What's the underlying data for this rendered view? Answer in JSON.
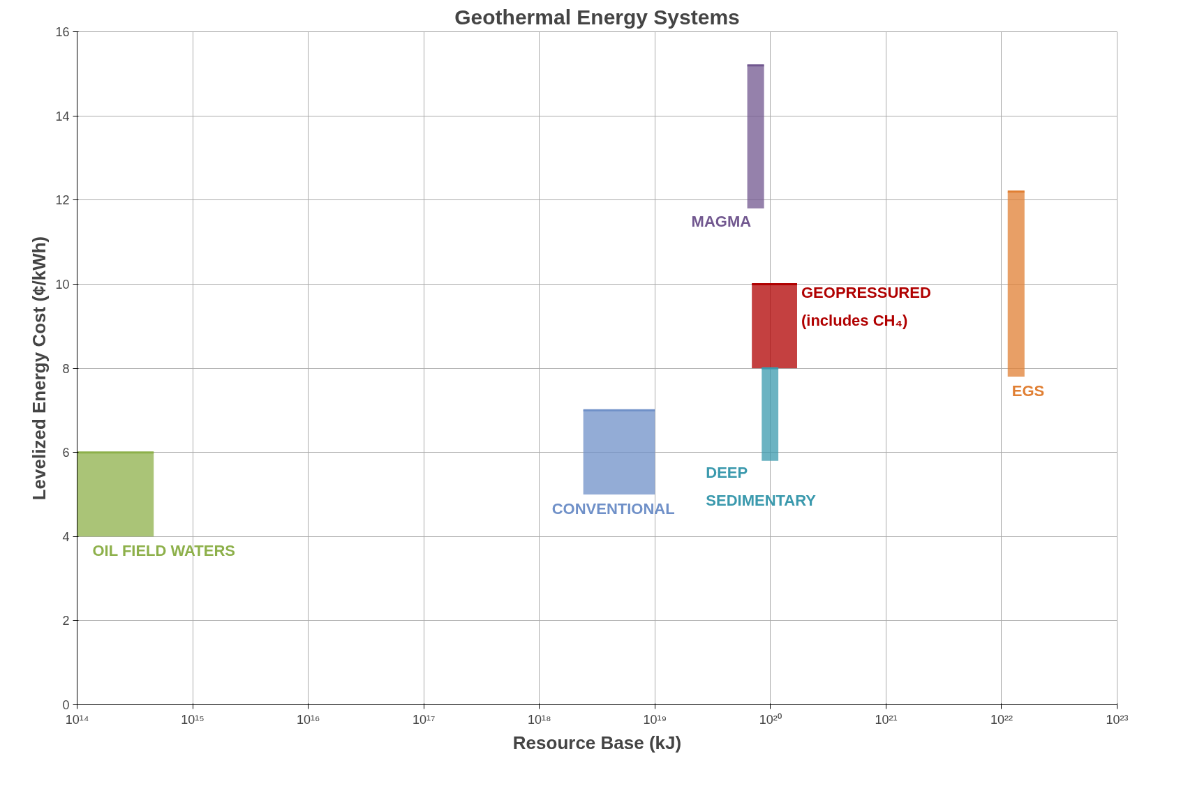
{
  "chart_data": {
    "type": "line",
    "title": "Geothermal Energy Systems",
    "xlabel": "Resource Base (kJ)",
    "ylabel": "Levelized Energy Cost (¢/kWh)",
    "log": "x",
    "grid": true,
    "xlim": [
      100000000000000.0,
      1e+23
    ],
    "xticks": [
      {
        "value": 100000000000000.0,
        "label": "10¹⁴"
      },
      {
        "value": 1000000000000000.0,
        "label": "10¹⁵"
      },
      {
        "value": 1e+16,
        "label": "10¹⁶"
      },
      {
        "value": 1e+17,
        "label": "10¹⁷"
      },
      {
        "value": 1e+18,
        "label": "10¹⁸"
      },
      {
        "value": 1e+19,
        "label": "10¹⁹"
      },
      {
        "value": 1e+20,
        "label": "10²⁰"
      },
      {
        "value": 1e+21,
        "label": "10²¹"
      },
      {
        "value": 1e+22,
        "label": "10²²"
      },
      {
        "value": 1e+23,
        "label": "10²³"
      }
    ],
    "ylim": [
      0,
      16
    ],
    "yticks": [
      0,
      2,
      4,
      6,
      8,
      10,
      12,
      14,
      16
    ],
    "series": [
      {
        "name": "OIL FIELD WATERS",
        "color": "#8db04a",
        "x": [
          100000000000000.0,
          460000000000000.0
        ],
        "values": [
          6,
          6
        ],
        "lower": [
          4,
          4
        ],
        "upper": [
          6,
          6
        ]
      },
      {
        "name": "CONVENTIONAL",
        "color": "#6f90c8",
        "x": [
          2.4e+18,
          1e+19
        ],
        "values": [
          7,
          7
        ],
        "lower": [
          5,
          5
        ],
        "upper": [
          7,
          7
        ]
      },
      {
        "name": "MAGMA",
        "color": "#71578f",
        "x": [
          6.3e+19,
          8.8e+19
        ],
        "values": [
          15.2,
          15.2
        ],
        "lower": [
          11.8,
          11.8
        ],
        "upper": [
          15.2,
          15.2
        ]
      },
      {
        "name": "DEEP\nSEDIMENTARY",
        "color": "#3a99ad",
        "x": [
          8.4e+19,
          1.17e+20
        ],
        "values": [
          8,
          8
        ],
        "lower": [
          5.8,
          5.8
        ],
        "upper": [
          8,
          8
        ]
      },
      {
        "name": "GEOPRESSURED\n(includes CH₄)",
        "color": "#b00000",
        "x": [
          6.9e+19,
          1.7e+20
        ],
        "values": [
          10,
          10
        ],
        "lower": [
          8,
          8
        ],
        "upper": [
          10,
          10
        ]
      },
      {
        "name": "EGS",
        "color": "#e07f33",
        "x": [
          1.13e+22,
          1.58e+22
        ],
        "values": [
          12.2,
          12.2
        ],
        "lower": [
          7.8,
          7.8
        ],
        "upper": [
          12.2,
          12.2
        ]
      }
    ]
  }
}
